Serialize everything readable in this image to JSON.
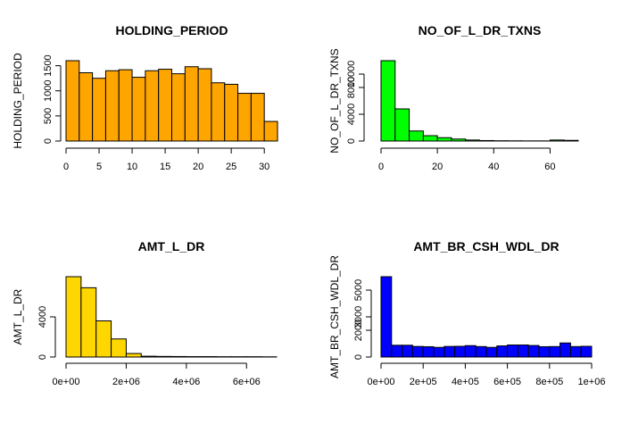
{
  "chart_data": [
    {
      "type": "bar",
      "title": "HOLDING_PERIOD",
      "ylabel": "HOLDING_PERIOD",
      "xlabel": "",
      "color": "#FFA500",
      "xlim": [
        0,
        32
      ],
      "ylim": [
        0,
        1600
      ],
      "x_ticks": [
        0,
        5,
        10,
        15,
        20,
        25,
        30
      ],
      "x_tick_labels": [
        "0",
        "5",
        "10",
        "15",
        "20",
        "25",
        "30"
      ],
      "y_ticks": [
        0,
        500,
        1000,
        1500
      ],
      "y_tick_labels": [
        "0",
        "500",
        "1000",
        "1500"
      ],
      "bins": [
        [
          0,
          2
        ],
        [
          2,
          4
        ],
        [
          4,
          6
        ],
        [
          6,
          8
        ],
        [
          8,
          10
        ],
        [
          10,
          12
        ],
        [
          12,
          14
        ],
        [
          14,
          16
        ],
        [
          16,
          18
        ],
        [
          18,
          20
        ],
        [
          20,
          22
        ],
        [
          22,
          24
        ],
        [
          24,
          26
        ],
        [
          26,
          28
        ],
        [
          28,
          30
        ],
        [
          30,
          32
        ]
      ],
      "values": [
        1600,
        1360,
        1250,
        1400,
        1420,
        1270,
        1400,
        1430,
        1340,
        1480,
        1440,
        1160,
        1130,
        950,
        950,
        390
      ]
    },
    {
      "type": "bar",
      "title": "NO_OF_L_DR_TXNS",
      "ylabel": "NO_OF_L_DR_TXNS",
      "xlabel": "",
      "color": "#00FF00",
      "xlim": [
        0,
        70
      ],
      "ylim": [
        0,
        12000
      ],
      "x_ticks": [
        0,
        20,
        40,
        60
      ],
      "x_tick_labels": [
        "0",
        "20",
        "40",
        "60"
      ],
      "y_ticks": [
        0,
        4000,
        8000,
        10000
      ],
      "y_tick_labels": [
        "0",
        "4000",
        "8000",
        "10000"
      ],
      "bins": [
        [
          0,
          5
        ],
        [
          5,
          10
        ],
        [
          10,
          15
        ],
        [
          15,
          20
        ],
        [
          20,
          25
        ],
        [
          25,
          30
        ],
        [
          30,
          35
        ],
        [
          35,
          40
        ],
        [
          40,
          45
        ],
        [
          45,
          50
        ],
        [
          50,
          55
        ],
        [
          55,
          60
        ],
        [
          60,
          65
        ],
        [
          65,
          70
        ]
      ],
      "values": [
        12000,
        4800,
        1500,
        800,
        500,
        300,
        150,
        70,
        40,
        30,
        20,
        20,
        150,
        100
      ]
    },
    {
      "type": "bar",
      "title": "AMT_L_DR",
      "ylabel": "AMT_L_DR",
      "xlabel": "",
      "color": "#FFD700",
      "xlim": [
        0,
        7000000
      ],
      "ylim": [
        0,
        8000
      ],
      "x_ticks": [
        0,
        2000000,
        4000000,
        6000000
      ],
      "x_tick_labels": [
        "0e+00",
        "2e+06",
        "4e+06",
        "6e+06"
      ],
      "y_ticks": [
        0,
        4000
      ],
      "y_tick_labels": [
        "0",
        "4000"
      ],
      "bins": [
        [
          0,
          500000
        ],
        [
          500000,
          1000000
        ],
        [
          1000000,
          1500000
        ],
        [
          1500000,
          2000000
        ],
        [
          2000000,
          2500000
        ],
        [
          2500000,
          3000000
        ],
        [
          3000000,
          3500000
        ],
        [
          3500000,
          4000000
        ],
        [
          4000000,
          4500000
        ],
        [
          4500000,
          5000000
        ],
        [
          5000000,
          5500000
        ],
        [
          5500000,
          6000000
        ],
        [
          6000000,
          6500000
        ],
        [
          6500000,
          7000000
        ]
      ],
      "values": [
        8000,
        6900,
        3600,
        1800,
        350,
        80,
        60,
        50,
        40,
        40,
        30,
        30,
        30,
        20
      ]
    },
    {
      "type": "bar",
      "title": "AMT_BR_CSH_WDL_DR",
      "ylabel": "AMT_BR_CSH_WDL_DR",
      "xlabel": "",
      "color": "#0000FF",
      "xlim": [
        0,
        1000000
      ],
      "ylim": [
        0,
        6000
      ],
      "x_ticks": [
        0,
        200000,
        400000,
        600000,
        800000,
        1000000
      ],
      "x_tick_labels": [
        "0e+00",
        "2e+05",
        "4e+05",
        "6e+05",
        "8e+05",
        "1e+06"
      ],
      "y_ticks": [
        0,
        2000,
        3000,
        5000
      ],
      "y_tick_labels": [
        "0",
        "2000",
        "3000",
        "5000"
      ],
      "bins": [
        [
          0,
          50000
        ],
        [
          50000,
          100000
        ],
        [
          100000,
          150000
        ],
        [
          150000,
          200000
        ],
        [
          200000,
          250000
        ],
        [
          250000,
          300000
        ],
        [
          300000,
          350000
        ],
        [
          350000,
          400000
        ],
        [
          400000,
          450000
        ],
        [
          450000,
          500000
        ],
        [
          500000,
          550000
        ],
        [
          550000,
          600000
        ],
        [
          600000,
          650000
        ],
        [
          650000,
          700000
        ],
        [
          700000,
          750000
        ],
        [
          750000,
          800000
        ],
        [
          800000,
          850000
        ],
        [
          850000,
          900000
        ],
        [
          900000,
          950000
        ],
        [
          950000,
          1000000
        ]
      ],
      "values": [
        6000,
        880,
        880,
        790,
        770,
        720,
        790,
        800,
        850,
        780,
        720,
        830,
        900,
        900,
        860,
        770,
        780,
        1050,
        780,
        800
      ]
    }
  ]
}
